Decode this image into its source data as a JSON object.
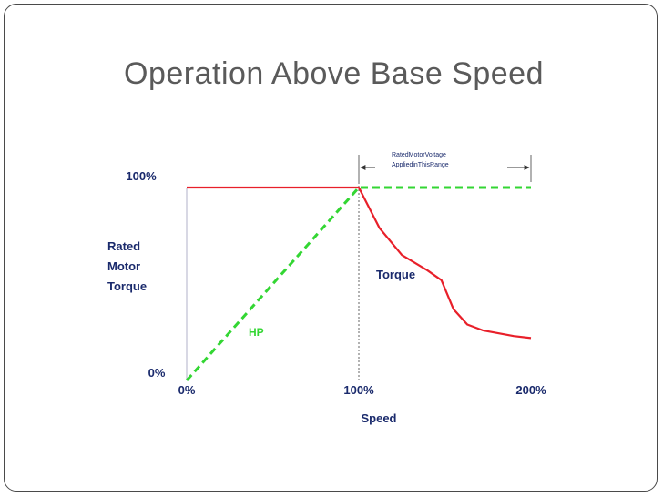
{
  "slide": {
    "title": "Operation Above Base Speed"
  },
  "chart_data": {
    "type": "line",
    "xlabel": "Speed",
    "ylabel_lines": [
      "Rated",
      "Motor",
      "Torque"
    ],
    "x_ticks": [
      "0%",
      "100%",
      "200%"
    ],
    "y_ticks": [
      "0%",
      "100%"
    ],
    "xlim": [
      0,
      200
    ],
    "ylim": [
      0,
      100
    ],
    "annotation": {
      "lines": [
        "RatedMotorVoltage",
        "AppliedinThisRange"
      ],
      "range": [
        100,
        200
      ]
    },
    "series": [
      {
        "name": "Torque",
        "color": "#e8202a",
        "style": "solid",
        "points": [
          [
            0,
            100
          ],
          [
            100,
            100
          ],
          [
            112,
            79
          ],
          [
            125,
            65
          ],
          [
            140,
            57
          ],
          [
            148,
            52
          ],
          [
            155,
            37
          ],
          [
            163,
            29
          ],
          [
            172,
            26
          ],
          [
            190,
            23
          ],
          [
            200,
            22
          ]
        ]
      },
      {
        "name": "HP",
        "color": "#33d633",
        "style": "dashed",
        "points": [
          [
            0,
            0
          ],
          [
            100,
            100
          ],
          [
            200,
            100
          ]
        ]
      }
    ]
  }
}
